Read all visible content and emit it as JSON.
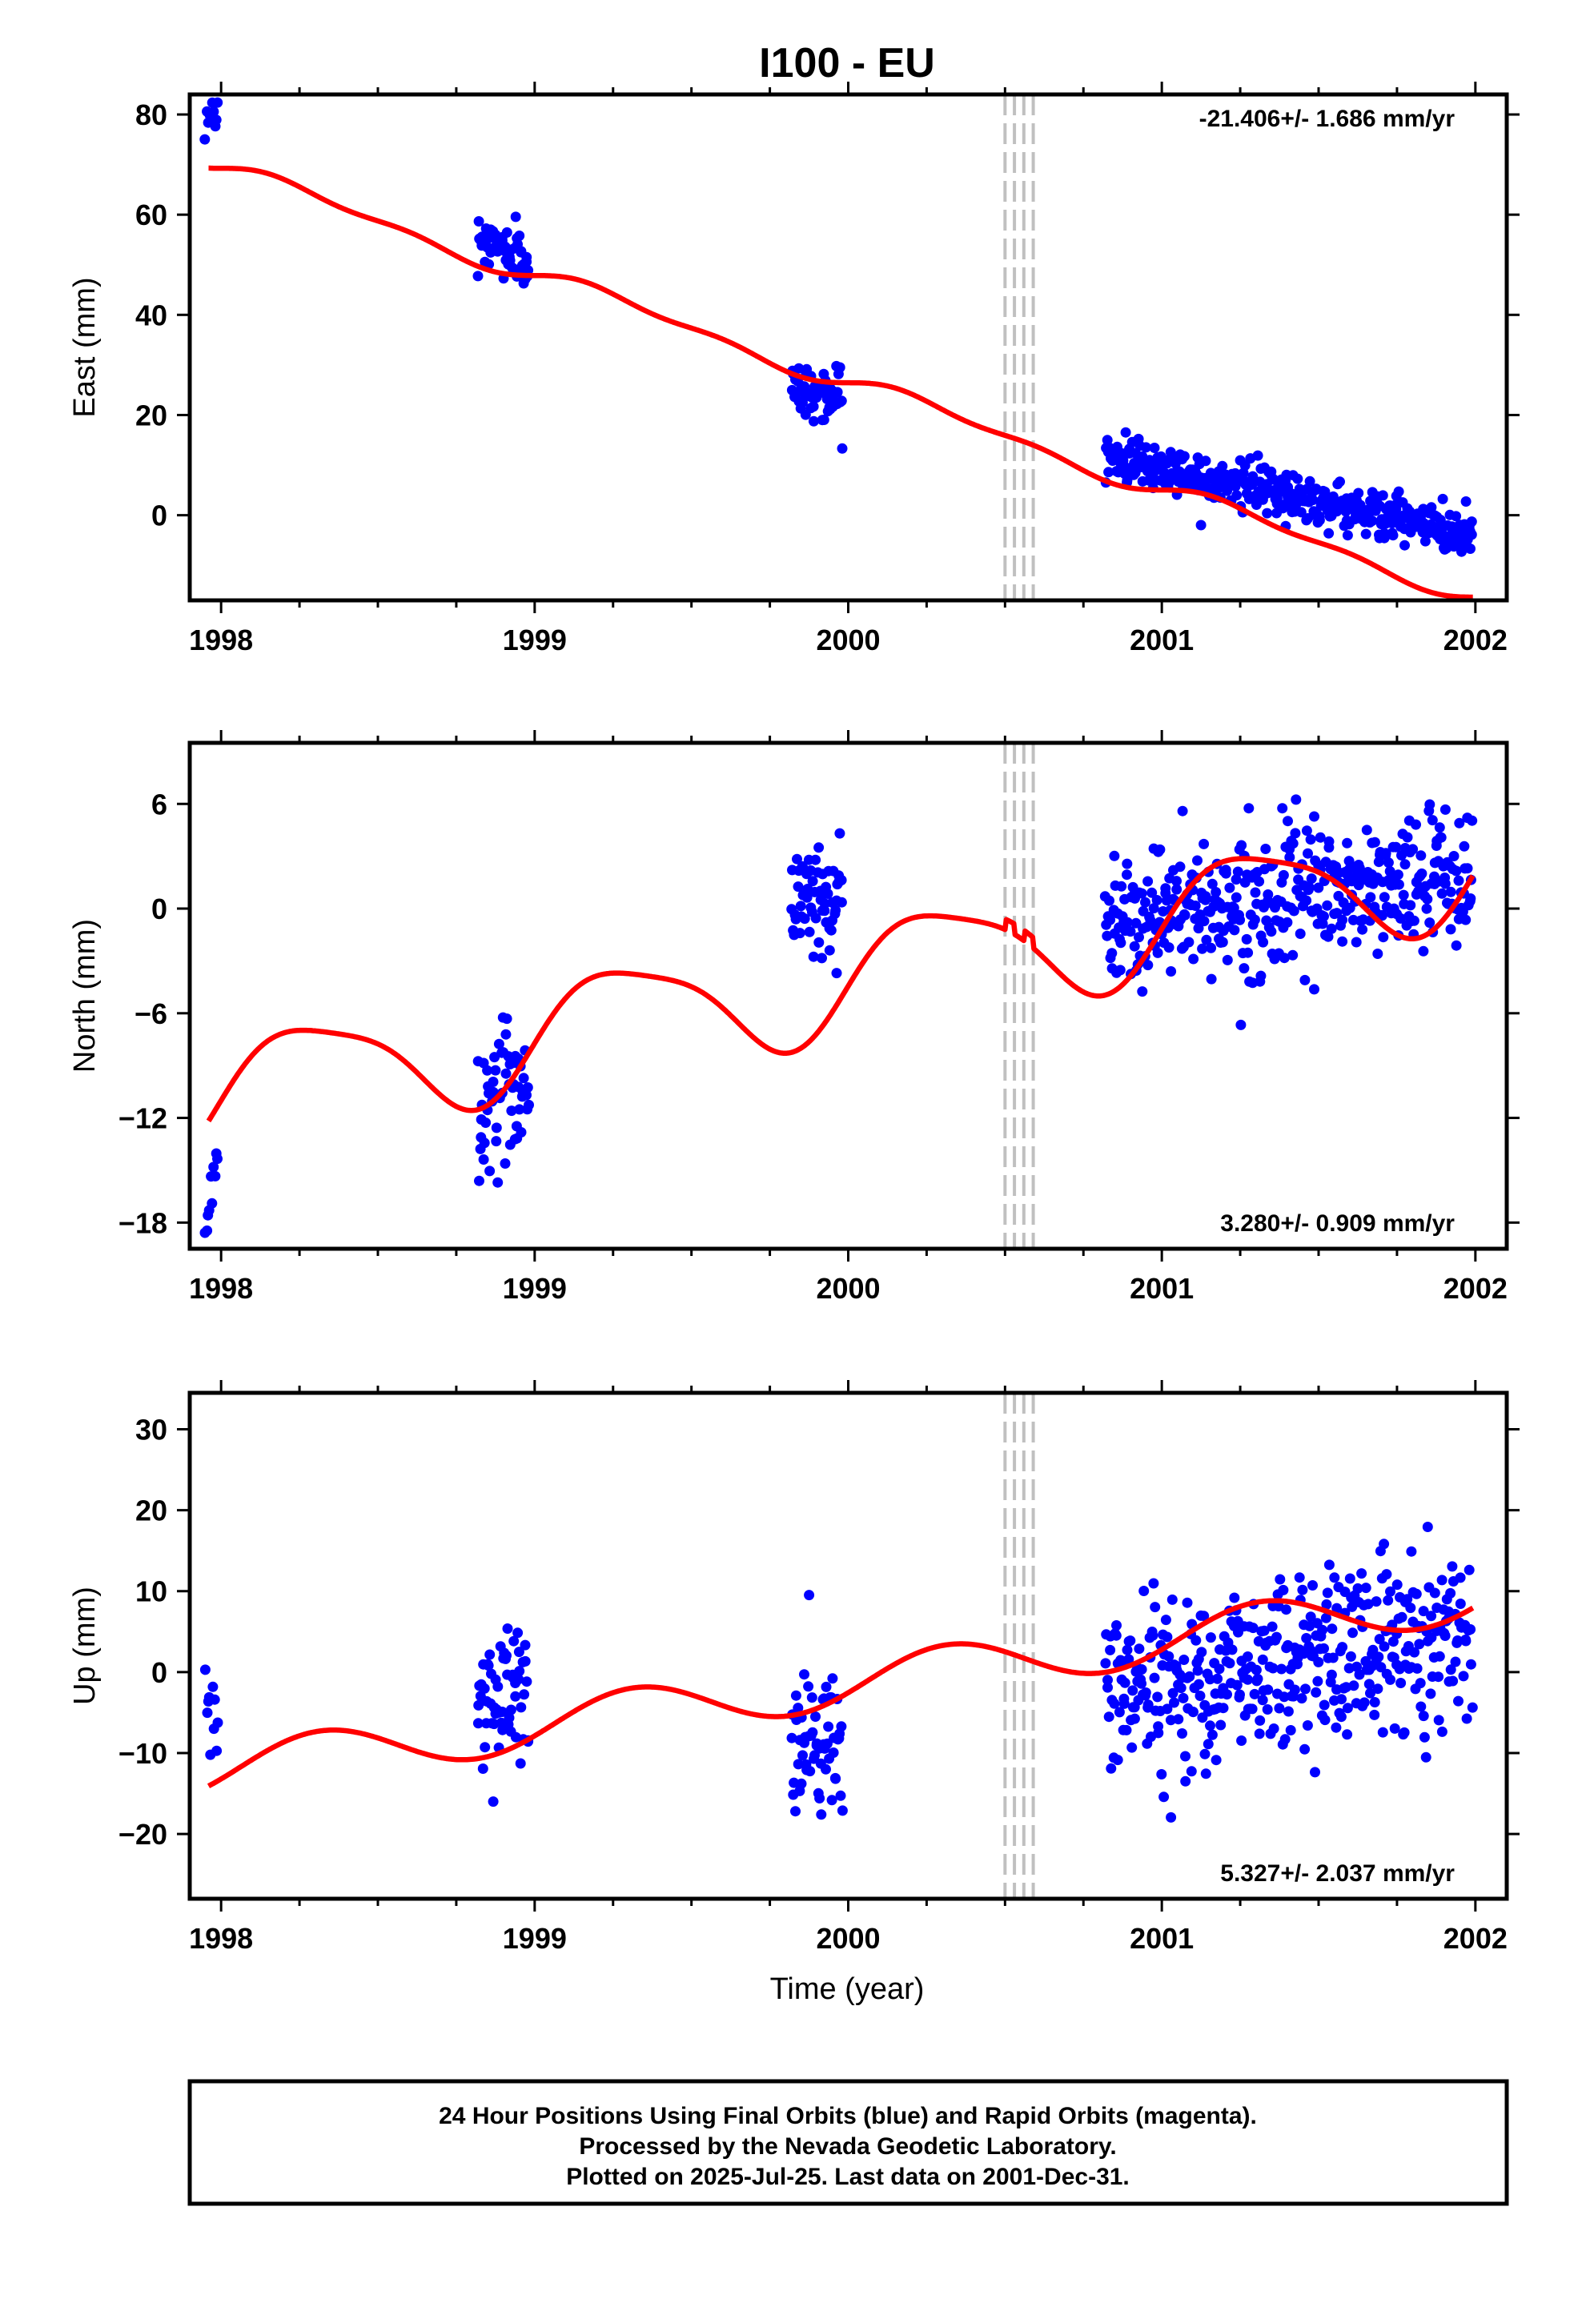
{
  "footer": {
    "line1": "24 Hour Positions Using Final Orbits (blue) and Rapid Orbits (magenta).",
    "line2": "Processed by the Nevada Geodetic Laboratory.",
    "line3": "Plotted on 2025-Jul-25. Last data on 2001-Dec-31."
  },
  "colors": {
    "final_orbits": "#0000ff",
    "model_fit": "#ff0000",
    "equipment_change_lines": "#c0c0c0",
    "frame": "#000000"
  },
  "chart_data": [
    {
      "type": "scatter",
      "title": "I100 - EU",
      "xlabel": "",
      "ylabel": "East (mm)",
      "xlim": [
        1997.9,
        2002.1
      ],
      "ylim": [
        -17,
        84
      ],
      "x_ticks": [
        1998,
        1999,
        2000,
        2001,
        2002
      ],
      "y_ticks": [
        0,
        20,
        40,
        60,
        80
      ],
      "annotation": "-21.406+/- 1.686 mm/yr",
      "rate": -21.406,
      "vertical_dashed_lines": [
        2000.5,
        2000.53,
        2000.56,
        2000.59
      ],
      "grid": false,
      "series": [
        {
          "role": "observations",
          "color": "#0000ff",
          "segments": [
            {
              "x_start": 1997.95,
              "x_end": 1997.99,
              "count": 10,
              "center": 80,
              "trend": 0,
              "spread": 2.0
            },
            {
              "x_start": 1998.82,
              "x_end": 1998.98,
              "count": 60,
              "center": 53,
              "trend": -6,
              "spread": 3.0
            },
            {
              "x_start": 1999.82,
              "x_end": 1999.98,
              "count": 60,
              "center": 24.5,
              "trend": -2,
              "spread": 2.8
            },
            {
              "x_start": 2000.82,
              "x_end": 2001.99,
              "count": 420,
              "center": 4,
              "trend": -16,
              "spread": 2.6
            }
          ]
        },
        {
          "role": "model",
          "color": "#ff0000",
          "trend_x0": 1997.97,
          "trend_y0": 70,
          "trend_rate": -21.406,
          "annual_sin": 1.55,
          "annual_cos": -0.1,
          "semiannual_sin": 0.9,
          "semiannual_cos": 0.0,
          "offsets": []
        }
      ]
    },
    {
      "type": "scatter",
      "title": "",
      "xlabel": "",
      "ylabel": "North (mm)",
      "xlim": [
        1997.9,
        2002.1
      ],
      "ylim": [
        -19.5,
        9.5
      ],
      "x_ticks": [
        1998,
        1999,
        2000,
        2001,
        2002
      ],
      "y_ticks": [
        -18,
        -12,
        -6,
        0,
        6
      ],
      "annotation": "3.280+/- 0.909 mm/yr",
      "rate": 3.28,
      "vertical_dashed_lines": [
        2000.5,
        2000.53,
        2000.56,
        2000.59
      ],
      "grid": false,
      "series": [
        {
          "role": "observations",
          "color": "#0000ff",
          "segments": [
            {
              "x_start": 1997.95,
              "x_end": 1997.99,
              "count": 10,
              "center": -16,
              "trend": 4,
              "spread": 1.5
            },
            {
              "x_start": 1998.82,
              "x_end": 1998.98,
              "count": 60,
              "center": -10.5,
              "trend": 2,
              "spread": 2.2
            },
            {
              "x_start": 1999.82,
              "x_end": 1999.98,
              "count": 60,
              "center": 0.5,
              "trend": 0,
              "spread": 2.2
            },
            {
              "x_start": 2000.82,
              "x_end": 2001.99,
              "count": 420,
              "center": 0.6,
              "trend": 2.5,
              "spread": 2.0
            }
          ]
        },
        {
          "role": "model",
          "color": "#ff0000",
          "trend_x0": 1998.0,
          "trend_y0": -10.5,
          "trend_rate": 3.28,
          "annual_sin": 3.0,
          "annual_cos": -0.8,
          "semiannual_sin": 0.6,
          "semiannual_cos": 0.3,
          "offsets": [
            {
              "x": 2000.5,
              "dy": 0.6
            },
            {
              "x": 2000.53,
              "dy": -0.6
            },
            {
              "x": 2000.56,
              "dy": 0.6
            },
            {
              "x": 2000.59,
              "dy": -0.6
            }
          ]
        }
      ]
    },
    {
      "type": "scatter",
      "title": "",
      "xlabel": "Time (year)",
      "ylabel": "Up (mm)",
      "xlim": [
        1997.9,
        2002.1
      ],
      "ylim": [
        -28,
        34.5
      ],
      "x_ticks": [
        1998,
        1999,
        2000,
        2001,
        2002
      ],
      "y_ticks": [
        -20,
        -10,
        0,
        10,
        20,
        30
      ],
      "annotation": "5.327+/- 2.037 mm/yr",
      "rate": 5.327,
      "vertical_dashed_lines": [
        2000.5,
        2000.53,
        2000.56,
        2000.59
      ],
      "grid": false,
      "series": [
        {
          "role": "observations",
          "color": "#0000ff",
          "segments": [
            {
              "x_start": 1997.95,
              "x_end": 1997.99,
              "count": 10,
              "center": -6,
              "trend": 0,
              "spread": 4.5
            },
            {
              "x_start": 1998.82,
              "x_end": 1998.98,
              "count": 60,
              "center": -3,
              "trend": 0,
              "spread": 5.5
            },
            {
              "x_start": 1999.82,
              "x_end": 1999.98,
              "count": 60,
              "center": -9,
              "trend": 0,
              "spread": 6.0
            },
            {
              "x_start": 2000.82,
              "x_end": 2001.99,
              "count": 420,
              "center": 1.5,
              "trend": 8,
              "spread": 6.0
            }
          ]
        },
        {
          "role": "model",
          "color": "#ff0000",
          "trend_x0": 1998.0,
          "trend_y0": -12,
          "trend_rate": 5.327,
          "annual_sin": 2.8,
          "annual_cos": -1.2,
          "semiannual_sin": 0.0,
          "semiannual_cos": 0.0,
          "offsets": []
        }
      ]
    }
  ]
}
